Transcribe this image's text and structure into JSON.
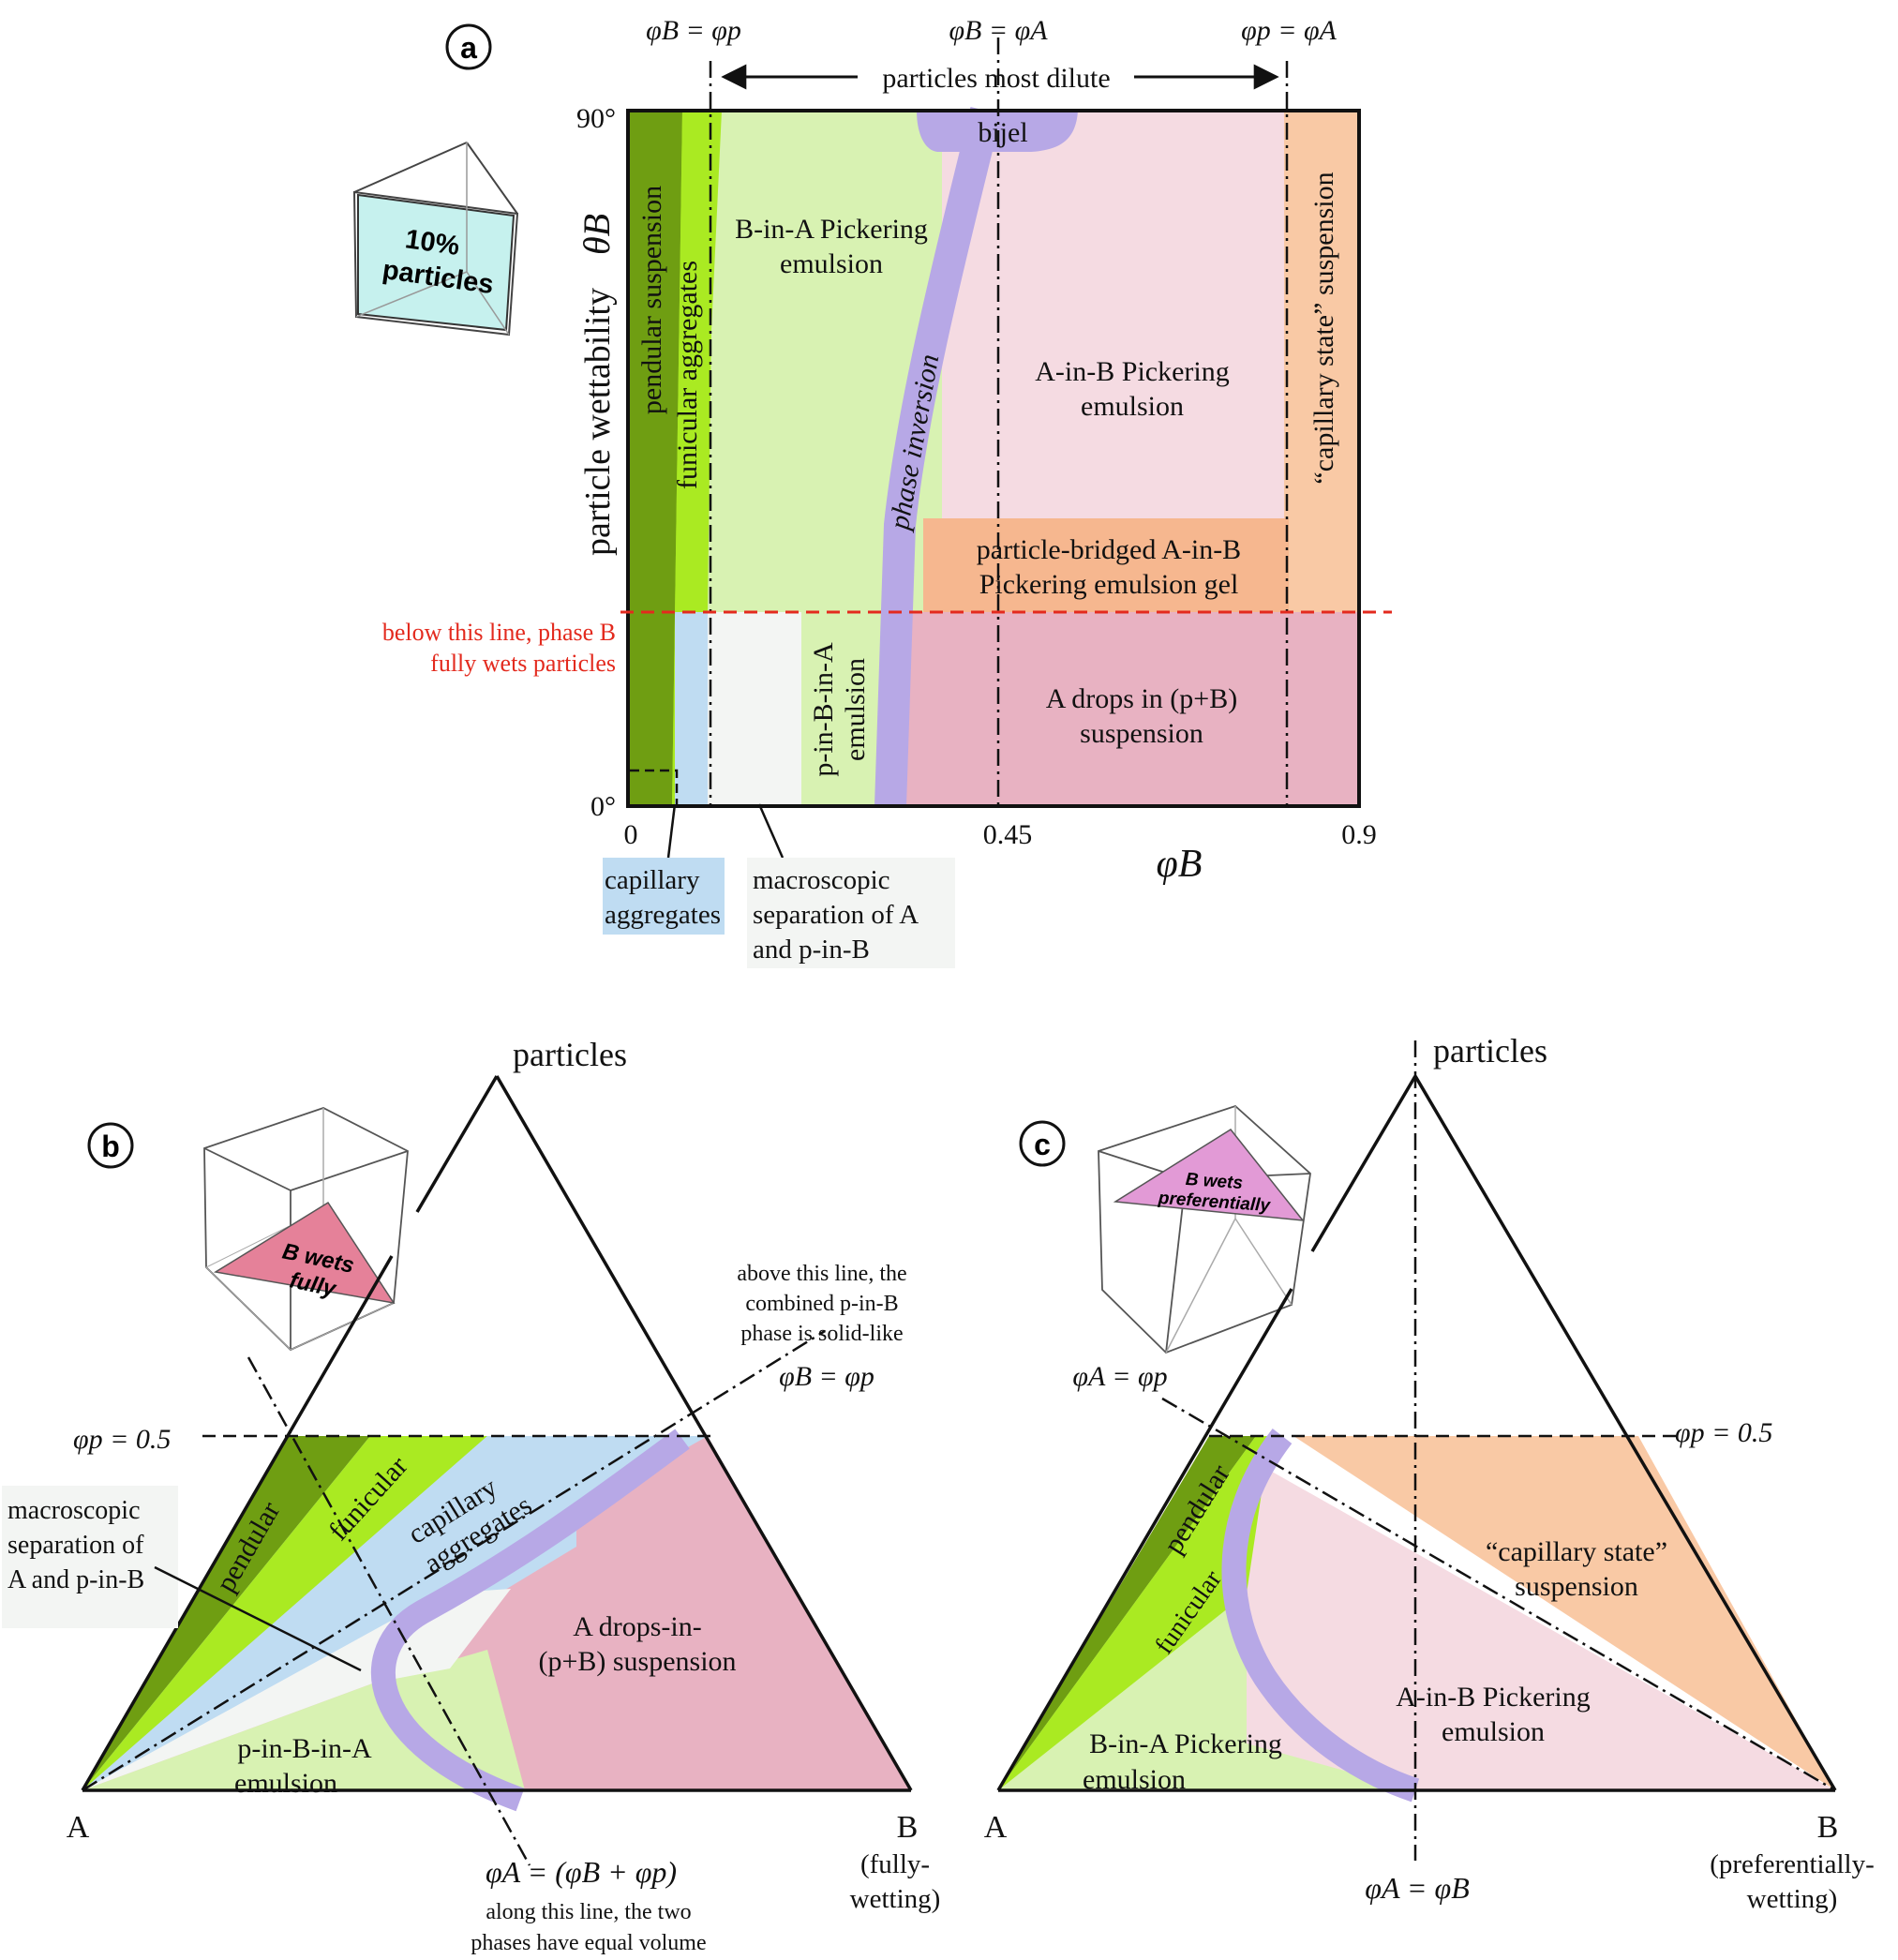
{
  "panel_a": {
    "label": "a",
    "top_labels": {
      "phiB_eq_phip": "φB = φp",
      "phiB_eq_phiA": "φB = φA",
      "phip_eq_phiA": "φp = φA"
    },
    "arrow_label": "particles most dilute",
    "yaxis": {
      "label": "particle wettability",
      "symbol": "θB",
      "top_tick": "90°",
      "bottom_tick": "0°"
    },
    "xaxis": {
      "symbol": "φB",
      "ticks": [
        "0",
        "0.45",
        "0.9"
      ]
    },
    "inset_text": [
      "10%",
      "particles"
    ],
    "regions": {
      "pendular": "pendular suspension",
      "funicular": "funicular aggregates",
      "b_in_a": [
        "B-in-A Pickering",
        "emulsion"
      ],
      "bijel": "bijel",
      "phase_inversion": "phase inversion",
      "a_in_b": [
        "A-in-B Pickering",
        "emulsion"
      ],
      "capillary_state": "“capillary state” suspension",
      "bridged": [
        "particle-bridged A-in-B",
        "Pickering emulsion gel"
      ],
      "a_drops": [
        "A drops in (p+B)",
        "suspension"
      ],
      "p_in_b_in_a": [
        "p-in-B-in-A",
        "emulsion"
      ]
    },
    "red_note": [
      "below this line, phase B",
      "fully wets particles"
    ],
    "capillary_box": [
      "capillary",
      "aggregates"
    ],
    "macro_box": [
      "macroscopic",
      "separation of A",
      "and p-in-B"
    ]
  },
  "panel_b": {
    "label": "b",
    "apex": "particles",
    "left_vertex": "A",
    "right_vertex": [
      "B",
      "(fully-",
      "wetting)"
    ],
    "inset_text": [
      "B wets",
      "fully"
    ],
    "phip_line": "φp = 0.5",
    "macro_box": [
      "macroscopic",
      "separation of",
      "A and p-in-B"
    ],
    "top_note": [
      "above this line, the",
      "combined p-in-B",
      "phase is solid-like"
    ],
    "phiB_eq_phip": "φB = φp",
    "regions": {
      "pendular": "pendular",
      "funicular": "funicular",
      "capillary": [
        "capillary",
        "aggregates"
      ],
      "a_drops": [
        "A drops-in-",
        "(p+B) suspension"
      ],
      "p_in_b_in_a": [
        "p-in-B-in-A",
        "emulsion"
      ]
    },
    "bottom_formula": "φA = (φB + φp)",
    "bottom_note": [
      "along this line, the two",
      "phases have equal volume"
    ]
  },
  "panel_c": {
    "label": "c",
    "apex": "particles",
    "left_vertex": "A",
    "right_vertex": [
      "B",
      "(preferentially-",
      "wetting)"
    ],
    "inset_text": [
      "B wets",
      "preferentially"
    ],
    "phiA_eq_phip": "φA = φp",
    "phip_line": "φp = 0.5",
    "regions": {
      "pendular": "pendular",
      "funicular": "funicular",
      "capillary_state": [
        "“capillary state”",
        "suspension"
      ],
      "a_in_b": [
        "A-in-B Pickering",
        "emulsion"
      ],
      "b_in_a": [
        "B-in-A Pickering",
        "emulsion"
      ]
    },
    "bottom_formula": "φA = φB"
  },
  "colors": {
    "dark_green": "#6f9e12",
    "bright_green": "#aaea22",
    "light_green": "#d8f2b2",
    "light_blue": "#bfdcf2",
    "off_white": "#f3f5f3",
    "light_pink": "#f5dbe2",
    "pink": "#e8b2c2",
    "orange": "#f9c9a5",
    "mid_orange": "#f6b78f",
    "lavender": "#b7a8e6",
    "red": "#e32a1e"
  }
}
